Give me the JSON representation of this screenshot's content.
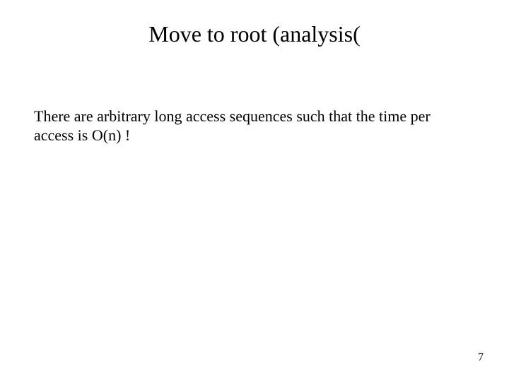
{
  "slide": {
    "title": "Move to root (analysis(",
    "body": "There are arbitrary long access sequences such that the time per access is O(n) !",
    "page_number": "7"
  },
  "style": {
    "background_color": "#ffffff",
    "text_color": "#000000",
    "title_fontsize": 32,
    "body_fontsize": 22,
    "pagenum_fontsize": 16,
    "font_family": "Times New Roman"
  }
}
